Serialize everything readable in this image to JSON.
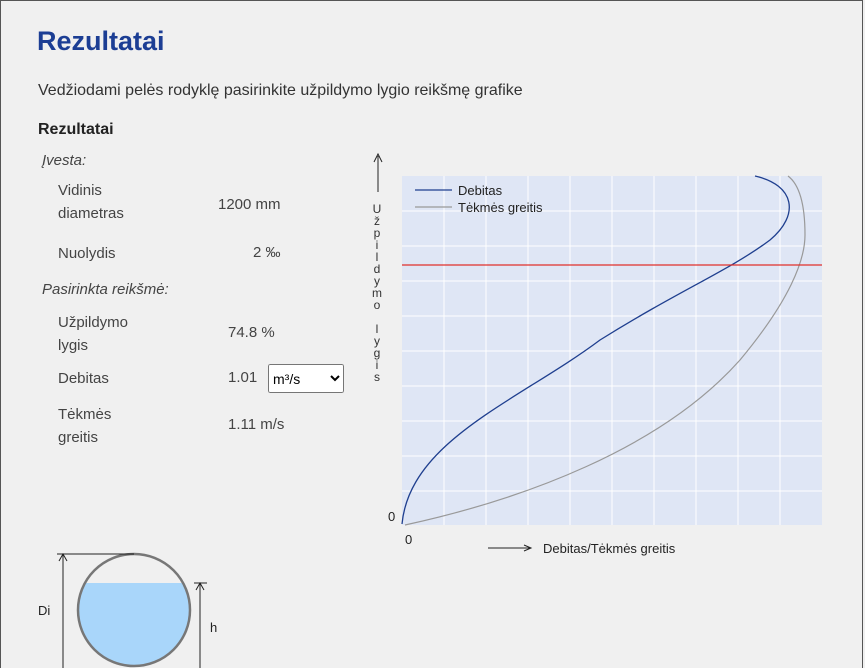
{
  "header": {
    "title": "Rezultatai",
    "instruction": "Vedžiodami pelės rodyklę pasirinkite užpildymo lygio reikšmę grafike"
  },
  "results": {
    "title": "Rezultatai",
    "input_title": "Įvesta:",
    "input": [
      {
        "label": "Vidinis diametras",
        "value": "1200 mm"
      },
      {
        "label": "Nuolydis",
        "value": "2 ‰"
      }
    ],
    "selected_title": "Pasirinkta reikšmė:",
    "selected": [
      {
        "label": "Užpildymo lygis",
        "value": "74.8 %"
      },
      {
        "label": "Debitas",
        "value": "1.01",
        "unit": "m³/s"
      },
      {
        "label": "Tėkmės greitis",
        "value": "1.11 m/s"
      }
    ]
  },
  "chart": {
    "y_label": "Užpildymo lygis",
    "x_label": "Debitas/Tėkmės greitis",
    "x_origin": "0",
    "y_origin": "0",
    "legend": [
      "Debitas",
      "Tėkmės greitis"
    ]
  },
  "diagram": {
    "diameter_label": "Di",
    "height_label": "h"
  }
}
